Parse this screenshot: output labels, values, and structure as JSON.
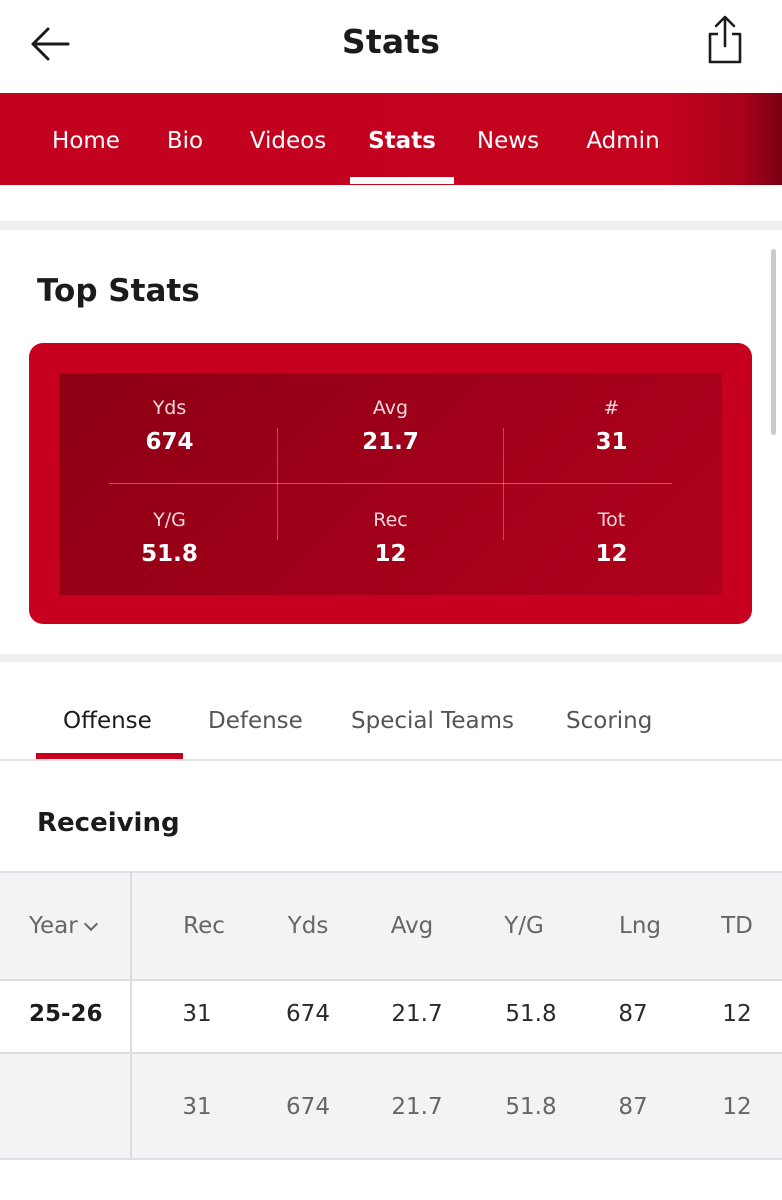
{
  "header": {
    "title": "Stats",
    "back_icon": "arrow-left-icon",
    "share_icon": "share-icon"
  },
  "nav": {
    "items": [
      {
        "label": "Home"
      },
      {
        "label": "Bio"
      },
      {
        "label": "Videos"
      },
      {
        "label": "Stats"
      },
      {
        "label": "News"
      },
      {
        "label": "Admin"
      }
    ],
    "active": "Stats"
  },
  "top_stats": {
    "title": "Top Stats",
    "cells": [
      {
        "label": "Yds",
        "value": "674"
      },
      {
        "label": "Avg",
        "value": "21.7"
      },
      {
        "label": "#",
        "value": "31"
      },
      {
        "label": "Y/G",
        "value": "51.8"
      },
      {
        "label": "Rec",
        "value": "12"
      },
      {
        "label": "Tot",
        "value": "12"
      }
    ]
  },
  "tabs": {
    "items": [
      {
        "label": "Offense"
      },
      {
        "label": "Defense"
      },
      {
        "label": "Special Teams"
      },
      {
        "label": "Scoring"
      }
    ],
    "active": "Offense"
  },
  "receiving": {
    "title": "Receiving",
    "year_header": "Year",
    "columns": [
      "Rec",
      "Yds",
      "Avg",
      "Y/G",
      "Lng",
      "TD"
    ],
    "rows": [
      {
        "year": "25-26",
        "values": [
          "31",
          "674",
          "21.7",
          "51.8",
          "87",
          "12"
        ]
      }
    ],
    "totals": [
      "31",
      "674",
      "21.7",
      "51.8",
      "87",
      "12"
    ]
  },
  "colors": {
    "brand_red": "#c8001f",
    "nav_red": "#c2021f"
  }
}
